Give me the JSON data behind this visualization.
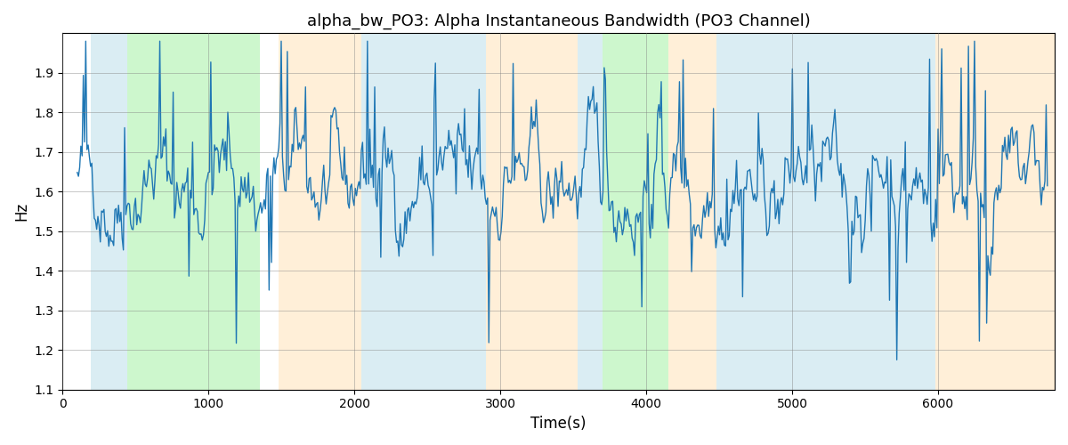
{
  "title": "alpha_bw_PO3: Alpha Instantaneous Bandwidth (PO3 Channel)",
  "xlabel": "Time(s)",
  "ylabel": "Hz",
  "xlim": [
    0,
    6800
  ],
  "ylim": [
    1.1,
    2.0
  ],
  "yticks": [
    1.1,
    1.2,
    1.3,
    1.4,
    1.5,
    1.6,
    1.7,
    1.8,
    1.9
  ],
  "xticks": [
    0,
    1000,
    2000,
    3000,
    4000,
    5000,
    6000
  ],
  "line_color": "#1f77b4",
  "line_width": 1.0,
  "bg_regions": [
    {
      "xstart": 190,
      "xend": 440,
      "color": "#add8e6",
      "alpha": 0.45
    },
    {
      "xstart": 440,
      "xend": 1350,
      "color": "#90ee90",
      "alpha": 0.45
    },
    {
      "xstart": 1480,
      "xend": 2050,
      "color": "#ffdcaa",
      "alpha": 0.45
    },
    {
      "xstart": 2050,
      "xend": 2900,
      "color": "#add8e6",
      "alpha": 0.45
    },
    {
      "xstart": 2900,
      "xend": 3530,
      "color": "#ffdcaa",
      "alpha": 0.45
    },
    {
      "xstart": 3530,
      "xend": 3700,
      "color": "#add8e6",
      "alpha": 0.45
    },
    {
      "xstart": 3700,
      "xend": 4150,
      "color": "#90ee90",
      "alpha": 0.45
    },
    {
      "xstart": 4150,
      "xend": 4480,
      "color": "#ffdcaa",
      "alpha": 0.45
    },
    {
      "xstart": 4480,
      "xend": 5980,
      "color": "#add8e6",
      "alpha": 0.45
    },
    {
      "xstart": 5980,
      "xend": 6800,
      "color": "#ffdcaa",
      "alpha": 0.45
    }
  ],
  "seed": 42,
  "t_start": 100,
  "t_end": 6750,
  "n_points": 800
}
